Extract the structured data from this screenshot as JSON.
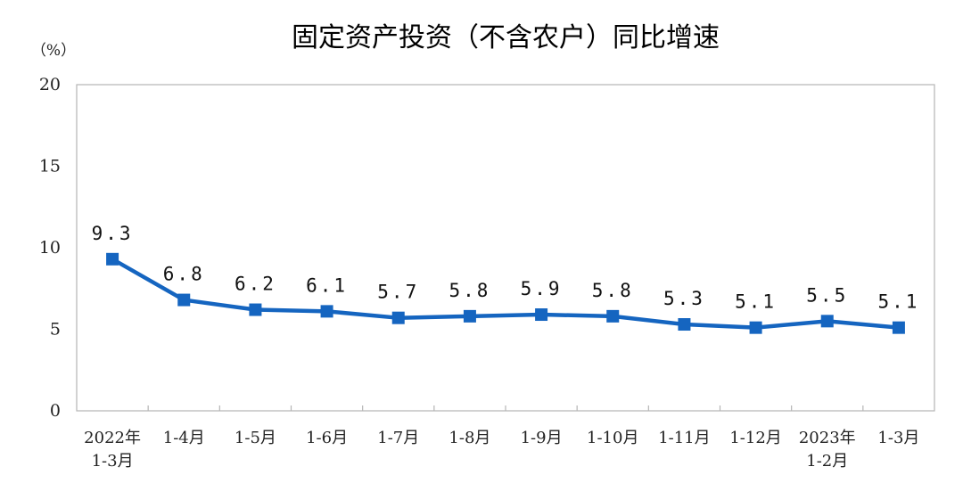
{
  "chart_data": {
    "type": "line",
    "title": "固定资产投资（不含农户）同比增速",
    "ylabel": "（%）",
    "xlabel": "",
    "ylim": [
      0,
      20
    ],
    "yticks": [
      0,
      5,
      10,
      15,
      20
    ],
    "grid": false,
    "categories": [
      [
        "2022年",
        "1-3月"
      ],
      [
        "1-4月"
      ],
      [
        "1-5月"
      ],
      [
        "1-6月"
      ],
      [
        "1-7月"
      ],
      [
        "1-8月"
      ],
      [
        "1-9月"
      ],
      [
        "1-10月"
      ],
      [
        "1-11月"
      ],
      [
        "1-12月"
      ],
      [
        "2023年",
        "1-2月"
      ],
      [
        "1-3月"
      ]
    ],
    "series": [
      {
        "values": [
          9.3,
          6.8,
          6.2,
          6.1,
          5.7,
          5.8,
          5.9,
          5.8,
          5.3,
          5.1,
          5.5,
          5.1
        ],
        "labels": [
          "9.3",
          "6.8",
          "6.2",
          "6.1",
          "5.7",
          "5.8",
          "5.9",
          "5.8",
          "5.3",
          "5.1",
          "5.5",
          "5.1"
        ]
      }
    ],
    "line_color": "#1565c0",
    "marker": "square"
  }
}
